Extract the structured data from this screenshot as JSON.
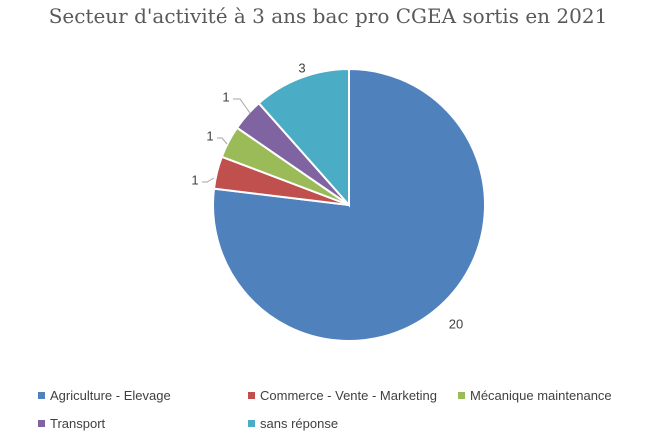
{
  "chart_data": {
    "type": "pie",
    "title": "Secteur d'activité à 3 ans bac pro CGEA sortis en 2021",
    "slices": [
      {
        "label": "Agriculture - Elevage",
        "value": 20,
        "color": "#4f81bd"
      },
      {
        "label": "Commerce - Vente - Marketing",
        "value": 1,
        "color": "#c0504d"
      },
      {
        "label": "Mécanique maintenance",
        "value": 1,
        "color": "#9bbb59"
      },
      {
        "label": "Transport",
        "value": 1,
        "color": "#8064a2"
      },
      {
        "label": "sans réponse",
        "value": 3,
        "color": "#4bacc6"
      }
    ],
    "legend_position": "bottom"
  }
}
